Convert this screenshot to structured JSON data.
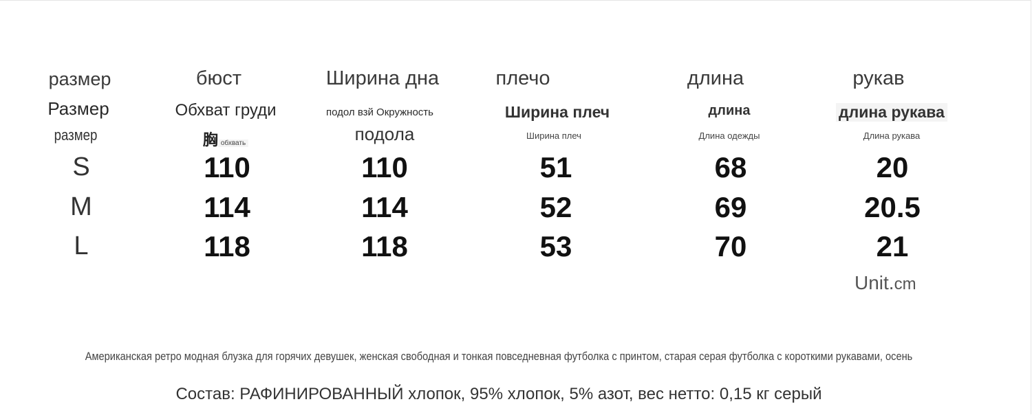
{
  "header_row1": [
    "размер",
    "бюст",
    "Ширина дна",
    "плечо",
    "длина",
    "рукав"
  ],
  "header_row2": [
    "Размер",
    "Обхват груди",
    "подол взй Окружность",
    "Ширина плеч",
    "длина",
    "длина рукава"
  ],
  "header_row3": [
    "размер",
    "胸",
    "обхвать",
    "подола",
    "Ширина плеч",
    "Длина одежды",
    "Длина рукава"
  ],
  "rows": [
    {
      "size": "S",
      "bust": "110",
      "hem": "110",
      "shoulder": "51",
      "length": "68",
      "sleeve": "20"
    },
    {
      "size": "M",
      "bust": "114",
      "hem": "114",
      "shoulder": "52",
      "length": "69",
      "sleeve": "20.5"
    },
    {
      "size": "L",
      "bust": "118",
      "hem": "118",
      "shoulder": "53",
      "length": "70",
      "sleeve": "21"
    }
  ],
  "unit_main": "Unit.",
  "unit_small": "cm",
  "description": "Американская ретро модная блузка для горячих девушек, женская свободная и тонкая повседневная футболка с принтом, старая серая футболка с короткими рукавами, осень",
  "composition": "Состав: РАФИНИРОВАННЫЙ хлопок, 95% хлопок, 5% азот, вес нетто: 0,15 кг серый"
}
